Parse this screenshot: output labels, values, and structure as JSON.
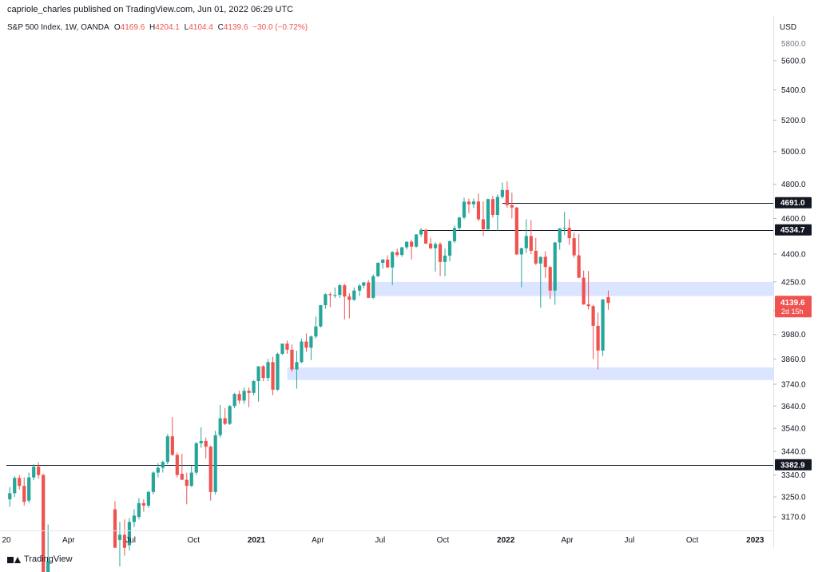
{
  "header": {
    "publish_line": "capriole_charles published on TradingView.com, Jun 01, 2022 06:29 UTC"
  },
  "legend": {
    "symbol": "S&P 500 Index, 1W, OANDA",
    "o_label": "O",
    "o_value": "4169.6",
    "h_label": "H",
    "h_value": "4204.1",
    "l_label": "L",
    "l_value": "4104.4",
    "c_label": "C",
    "c_value": "4139.6",
    "change": "−30.0 (−0.72%)"
  },
  "footer": {
    "brand": "TradingView"
  },
  "colors": {
    "up": "#26a69a",
    "down": "#ef5350",
    "zone": "#dbe5ff",
    "line": "#131722",
    "price_badge": "#ef5350",
    "level_badge": "#131722"
  },
  "chart_data": {
    "type": "candlestick",
    "title": "S&P 500 Index, 1W, OANDA",
    "currency": "USD",
    "y_scale": "log",
    "ylim": [
      3110,
      5950
    ],
    "y_ticks": [
      3170.0,
      3250.0,
      3340.0,
      3440.0,
      3540.0,
      3640.0,
      3740.0,
      3860.0,
      3980.0,
      4100.0,
      4250.0,
      4400.0,
      4600.0,
      4800.0,
      5000.0,
      5200.0,
      5400.0,
      5600.0
    ],
    "y_tick_labels": [
      "3170.0",
      "3250.0",
      "3340.0",
      "3440.0",
      "3540.0",
      "3640.0",
      "3740.0",
      "3860.0",
      "3980.0",
      "4100.0",
      "4250.0",
      "4400.0",
      "4600.0",
      "4800.0",
      "5000.0",
      "5200.0",
      "5400.0",
      "5600.0"
    ],
    "y_top_tick_label": "5800.0",
    "x_tick_labels": [
      {
        "label": "20",
        "date": "2020-01-01"
      },
      {
        "label": "Apr",
        "date": "2020-04-01"
      },
      {
        "label": "Jul",
        "date": "2020-07-01"
      },
      {
        "label": "Oct",
        "date": "2020-10-01"
      },
      {
        "label": "2021",
        "date": "2021-01-01"
      },
      {
        "label": "Apr",
        "date": "2021-04-01"
      },
      {
        "label": "Jul",
        "date": "2021-07-01"
      },
      {
        "label": "Oct",
        "date": "2021-10-01"
      },
      {
        "label": "2022",
        "date": "2022-01-01"
      },
      {
        "label": "Apr",
        "date": "2022-04-01"
      },
      {
        "label": "Jul",
        "date": "2022-07-01"
      },
      {
        "label": "Oct",
        "date": "2022-10-01"
      },
      {
        "label": "2023",
        "date": "2023-01-01"
      }
    ],
    "bold_x_labels": [
      "2021",
      "2022",
      "2023"
    ],
    "horizontal_levels": [
      {
        "value": 4691.0,
        "label": "4691.0",
        "start": "2021-12-27"
      },
      {
        "value": 4534.7,
        "label": "4534.7",
        "start": "2021-08-30"
      },
      {
        "value": 3382.9,
        "label": "3382.9",
        "start": "2020-01-01"
      }
    ],
    "zones": [
      {
        "low": 4175,
        "high": 4250,
        "start": "2021-06-21"
      },
      {
        "low": 3760,
        "high": 3820,
        "start": "2021-02-15"
      }
    ],
    "last_price": {
      "value": 4139.6,
      "label": "4139.6",
      "countdown": "2d 15h"
    },
    "candles": [
      {
        "date": "2020-01-06",
        "o": 3240,
        "h": 3290,
        "l": 3210,
        "c": 3265
      },
      {
        "date": "2020-01-13",
        "o": 3265,
        "h": 3335,
        "l": 3250,
        "c": 3328
      },
      {
        "date": "2020-01-20",
        "o": 3328,
        "h": 3340,
        "l": 3280,
        "c": 3295
      },
      {
        "date": "2020-01-27",
        "o": 3295,
        "h": 3330,
        "l": 3215,
        "c": 3230
      },
      {
        "date": "2020-02-03",
        "o": 3235,
        "h": 3350,
        "l": 3225,
        "c": 3330
      },
      {
        "date": "2020-02-10",
        "o": 3330,
        "h": 3385,
        "l": 3318,
        "c": 3375
      },
      {
        "date": "2020-02-17",
        "o": 3375,
        "h": 3393,
        "l": 3325,
        "c": 3340
      },
      {
        "date": "2020-02-24",
        "o": 3340,
        "h": 3345,
        "l": 2860,
        "c": 2950
      },
      {
        "date": "2020-03-02",
        "o": 2950,
        "h": 3140,
        "l": 2900,
        "c": 3000
      },
      {
        "date": "2020-06-08",
        "o": 3200,
        "h": 3233,
        "l": 3060,
        "c": 3050
      },
      {
        "date": "2020-06-15",
        "o": 3080,
        "h": 3150,
        "l": 2980,
        "c": 3100
      },
      {
        "date": "2020-06-22",
        "o": 3100,
        "h": 3160,
        "l": 3020,
        "c": 3050
      },
      {
        "date": "2020-06-29",
        "o": 3060,
        "h": 3165,
        "l": 3040,
        "c": 3150
      },
      {
        "date": "2020-07-06",
        "o": 3150,
        "h": 3200,
        "l": 3130,
        "c": 3175
      },
      {
        "date": "2020-07-13",
        "o": 3170,
        "h": 3245,
        "l": 3160,
        "c": 3225
      },
      {
        "date": "2020-07-20",
        "o": 3225,
        "h": 3240,
        "l": 3190,
        "c": 3215
      },
      {
        "date": "2020-07-27",
        "o": 3215,
        "h": 3275,
        "l": 3205,
        "c": 3270
      },
      {
        "date": "2020-08-03",
        "o": 3270,
        "h": 3355,
        "l": 3260,
        "c": 3350
      },
      {
        "date": "2020-08-10",
        "o": 3350,
        "h": 3390,
        "l": 3330,
        "c": 3370
      },
      {
        "date": "2020-08-17",
        "o": 3370,
        "h": 3400,
        "l": 3350,
        "c": 3395
      },
      {
        "date": "2020-08-24",
        "o": 3395,
        "h": 3515,
        "l": 3385,
        "c": 3505
      },
      {
        "date": "2020-08-31",
        "o": 3505,
        "h": 3590,
        "l": 3420,
        "c": 3425
      },
      {
        "date": "2020-09-07",
        "o": 3425,
        "h": 3435,
        "l": 3330,
        "c": 3340
      },
      {
        "date": "2020-09-14",
        "o": 3345,
        "h": 3430,
        "l": 3330,
        "c": 3320
      },
      {
        "date": "2020-09-21",
        "o": 3320,
        "h": 3350,
        "l": 3220,
        "c": 3295
      },
      {
        "date": "2020-09-28",
        "o": 3295,
        "h": 3380,
        "l": 3290,
        "c": 3350
      },
      {
        "date": "2020-10-05",
        "o": 3350,
        "h": 3480,
        "l": 3340,
        "c": 3475
      },
      {
        "date": "2020-10-12",
        "o": 3475,
        "h": 3545,
        "l": 3455,
        "c": 3485
      },
      {
        "date": "2020-10-19",
        "o": 3485,
        "h": 3500,
        "l": 3410,
        "c": 3460
      },
      {
        "date": "2020-10-26",
        "o": 3460,
        "h": 3465,
        "l": 3235,
        "c": 3270
      },
      {
        "date": "2020-11-02",
        "o": 3270,
        "h": 3530,
        "l": 3260,
        "c": 3510
      },
      {
        "date": "2020-11-09",
        "o": 3510,
        "h": 3645,
        "l": 3500,
        "c": 3585
      },
      {
        "date": "2020-11-16",
        "o": 3585,
        "h": 3630,
        "l": 3555,
        "c": 3560
      },
      {
        "date": "2020-11-23",
        "o": 3560,
        "h": 3645,
        "l": 3555,
        "c": 3640
      },
      {
        "date": "2020-11-30",
        "o": 3640,
        "h": 3700,
        "l": 3630,
        "c": 3695
      },
      {
        "date": "2020-12-07",
        "o": 3695,
        "h": 3710,
        "l": 3650,
        "c": 3665
      },
      {
        "date": "2020-12-14",
        "o": 3665,
        "h": 3725,
        "l": 3650,
        "c": 3710
      },
      {
        "date": "2020-12-21",
        "o": 3710,
        "h": 3725,
        "l": 3635,
        "c": 3700
      },
      {
        "date": "2020-12-28",
        "o": 3700,
        "h": 3760,
        "l": 3690,
        "c": 3755
      },
      {
        "date": "2021-01-04",
        "o": 3755,
        "h": 3825,
        "l": 3660,
        "c": 3825
      },
      {
        "date": "2021-01-11",
        "o": 3825,
        "h": 3830,
        "l": 3755,
        "c": 3770
      },
      {
        "date": "2021-01-18",
        "o": 3770,
        "h": 3860,
        "l": 3755,
        "c": 3845
      },
      {
        "date": "2021-01-25",
        "o": 3845,
        "h": 3870,
        "l": 3690,
        "c": 3715
      },
      {
        "date": "2021-02-01",
        "o": 3715,
        "h": 3890,
        "l": 3710,
        "c": 3885
      },
      {
        "date": "2021-02-08",
        "o": 3885,
        "h": 3935,
        "l": 3880,
        "c": 3935
      },
      {
        "date": "2021-02-15",
        "o": 3935,
        "h": 3950,
        "l": 3885,
        "c": 3905
      },
      {
        "date": "2021-02-22",
        "o": 3905,
        "h": 3930,
        "l": 3800,
        "c": 3810
      },
      {
        "date": "2021-03-01",
        "o": 3810,
        "h": 3900,
        "l": 3720,
        "c": 3845
      },
      {
        "date": "2021-03-08",
        "o": 3845,
        "h": 3960,
        "l": 3840,
        "c": 3945
      },
      {
        "date": "2021-03-15",
        "o": 3945,
        "h": 3985,
        "l": 3895,
        "c": 3915
      },
      {
        "date": "2021-03-22",
        "o": 3915,
        "h": 3975,
        "l": 3855,
        "c": 3970
      },
      {
        "date": "2021-03-29",
        "o": 3970,
        "h": 4070,
        "l": 3960,
        "c": 4020
      },
      {
        "date": "2021-04-05",
        "o": 4020,
        "h": 4130,
        "l": 4015,
        "c": 4128
      },
      {
        "date": "2021-04-12",
        "o": 4128,
        "h": 4190,
        "l": 4110,
        "c": 4185
      },
      {
        "date": "2021-04-19",
        "o": 4185,
        "h": 4195,
        "l": 4118,
        "c": 4180
      },
      {
        "date": "2021-04-26",
        "o": 4180,
        "h": 4220,
        "l": 4165,
        "c": 4181
      },
      {
        "date": "2021-05-03",
        "o": 4181,
        "h": 4240,
        "l": 4165,
        "c": 4232
      },
      {
        "date": "2021-05-10",
        "o": 4232,
        "h": 4240,
        "l": 4055,
        "c": 4173
      },
      {
        "date": "2021-05-17",
        "o": 4173,
        "h": 4190,
        "l": 4061,
        "c": 4156
      },
      {
        "date": "2021-05-24",
        "o": 4156,
        "h": 4220,
        "l": 4150,
        "c": 4204
      },
      {
        "date": "2021-06-01",
        "o": 4204,
        "h": 4240,
        "l": 4175,
        "c": 4230
      },
      {
        "date": "2021-06-07",
        "o": 4230,
        "h": 4250,
        "l": 4215,
        "c": 4247
      },
      {
        "date": "2021-06-14",
        "o": 4247,
        "h": 4260,
        "l": 4165,
        "c": 4166
      },
      {
        "date": "2021-06-21",
        "o": 4166,
        "h": 4290,
        "l": 4160,
        "c": 4280
      },
      {
        "date": "2021-06-28",
        "o": 4280,
        "h": 4355,
        "l": 4275,
        "c": 4352
      },
      {
        "date": "2021-07-05",
        "o": 4352,
        "h": 4372,
        "l": 4320,
        "c": 4370
      },
      {
        "date": "2021-07-12",
        "o": 4370,
        "h": 4393,
        "l": 4325,
        "c": 4327
      },
      {
        "date": "2021-07-19",
        "o": 4327,
        "h": 4415,
        "l": 4233,
        "c": 4411
      },
      {
        "date": "2021-07-26",
        "o": 4411,
        "h": 4430,
        "l": 4385,
        "c": 4395
      },
      {
        "date": "2021-08-02",
        "o": 4395,
        "h": 4440,
        "l": 4385,
        "c": 4437
      },
      {
        "date": "2021-08-09",
        "o": 4437,
        "h": 4470,
        "l": 4425,
        "c": 4468
      },
      {
        "date": "2021-08-16",
        "o": 4468,
        "h": 4480,
        "l": 4370,
        "c": 4441
      },
      {
        "date": "2021-08-23",
        "o": 4441,
        "h": 4510,
        "l": 4435,
        "c": 4509
      },
      {
        "date": "2021-08-30",
        "o": 4509,
        "h": 4545,
        "l": 4495,
        "c": 4535
      },
      {
        "date": "2021-09-06",
        "o": 4535,
        "h": 4540,
        "l": 4455,
        "c": 4458
      },
      {
        "date": "2021-09-13",
        "o": 4458,
        "h": 4490,
        "l": 4425,
        "c": 4432
      },
      {
        "date": "2021-09-20",
        "o": 4432,
        "h": 4465,
        "l": 4305,
        "c": 4455
      },
      {
        "date": "2021-09-27",
        "o": 4455,
        "h": 4465,
        "l": 4280,
        "c": 4357
      },
      {
        "date": "2021-10-04",
        "o": 4357,
        "h": 4430,
        "l": 4280,
        "c": 4391
      },
      {
        "date": "2021-10-11",
        "o": 4391,
        "h": 4475,
        "l": 4360,
        "c": 4471
      },
      {
        "date": "2021-10-18",
        "o": 4471,
        "h": 4560,
        "l": 4460,
        "c": 4545
      },
      {
        "date": "2021-10-25",
        "o": 4545,
        "h": 4610,
        "l": 4535,
        "c": 4605
      },
      {
        "date": "2021-11-01",
        "o": 4605,
        "h": 4720,
        "l": 4595,
        "c": 4697
      },
      {
        "date": "2021-11-08",
        "o": 4697,
        "h": 4715,
        "l": 4630,
        "c": 4682
      },
      {
        "date": "2021-11-15",
        "o": 4682,
        "h": 4715,
        "l": 4660,
        "c": 4698
      },
      {
        "date": "2021-11-22",
        "o": 4698,
        "h": 4745,
        "l": 4585,
        "c": 4595
      },
      {
        "date": "2021-11-29",
        "o": 4595,
        "h": 4700,
        "l": 4500,
        "c": 4538
      },
      {
        "date": "2021-12-06",
        "o": 4538,
        "h": 4715,
        "l": 4535,
        "c": 4712
      },
      {
        "date": "2021-12-13",
        "o": 4712,
        "h": 4730,
        "l": 4605,
        "c": 4620
      },
      {
        "date": "2021-12-20",
        "o": 4620,
        "h": 4740,
        "l": 4530,
        "c": 4725
      },
      {
        "date": "2021-12-27",
        "o": 4725,
        "h": 4810,
        "l": 4715,
        "c": 4766
      },
      {
        "date": "2022-01-03",
        "o": 4766,
        "h": 4818,
        "l": 4660,
        "c": 4677
      },
      {
        "date": "2022-01-10",
        "o": 4677,
        "h": 4750,
        "l": 4600,
        "c": 4663
      },
      {
        "date": "2022-01-17",
        "o": 4663,
        "h": 4665,
        "l": 4395,
        "c": 4398
      },
      {
        "date": "2022-01-24",
        "o": 4398,
        "h": 4435,
        "l": 4222,
        "c": 4432
      },
      {
        "date": "2022-01-31",
        "o": 4432,
        "h": 4595,
        "l": 4405,
        "c": 4500
      },
      {
        "date": "2022-02-07",
        "o": 4500,
        "h": 4590,
        "l": 4400,
        "c": 4418
      },
      {
        "date": "2022-02-14",
        "o": 4418,
        "h": 4490,
        "l": 4340,
        "c": 4348
      },
      {
        "date": "2022-02-21",
        "o": 4348,
        "h": 4385,
        "l": 4115,
        "c": 4385
      },
      {
        "date": "2022-02-28",
        "o": 4385,
        "h": 4415,
        "l": 4270,
        "c": 4329
      },
      {
        "date": "2022-03-07",
        "o": 4329,
        "h": 4335,
        "l": 4160,
        "c": 4204
      },
      {
        "date": "2022-03-14",
        "o": 4204,
        "h": 4466,
        "l": 4130,
        "c": 4464
      },
      {
        "date": "2022-03-21",
        "o": 4464,
        "h": 4545,
        "l": 4425,
        "c": 4543
      },
      {
        "date": "2022-03-28",
        "o": 4543,
        "h": 4638,
        "l": 4505,
        "c": 4546
      },
      {
        "date": "2022-04-04",
        "o": 4546,
        "h": 4595,
        "l": 4450,
        "c": 4488
      },
      {
        "date": "2022-04-11",
        "o": 4488,
        "h": 4520,
        "l": 4380,
        "c": 4393
      },
      {
        "date": "2022-04-18",
        "o": 4393,
        "h": 4512,
        "l": 4270,
        "c": 4272
      },
      {
        "date": "2022-04-25",
        "o": 4272,
        "h": 4310,
        "l": 4130,
        "c": 4132
      },
      {
        "date": "2022-05-02",
        "o": 4132,
        "h": 4308,
        "l": 4106,
        "c": 4123
      },
      {
        "date": "2022-05-09",
        "o": 4123,
        "h": 4130,
        "l": 3860,
        "c": 4023
      },
      {
        "date": "2022-05-16",
        "o": 4023,
        "h": 4090,
        "l": 3810,
        "c": 3901
      },
      {
        "date": "2022-05-23",
        "o": 3901,
        "h": 4158,
        "l": 3875,
        "c": 4158
      },
      {
        "date": "2022-05-31",
        "o": 4169.6,
        "h": 4204.1,
        "l": 4104.4,
        "c": 4139.6
      }
    ]
  }
}
